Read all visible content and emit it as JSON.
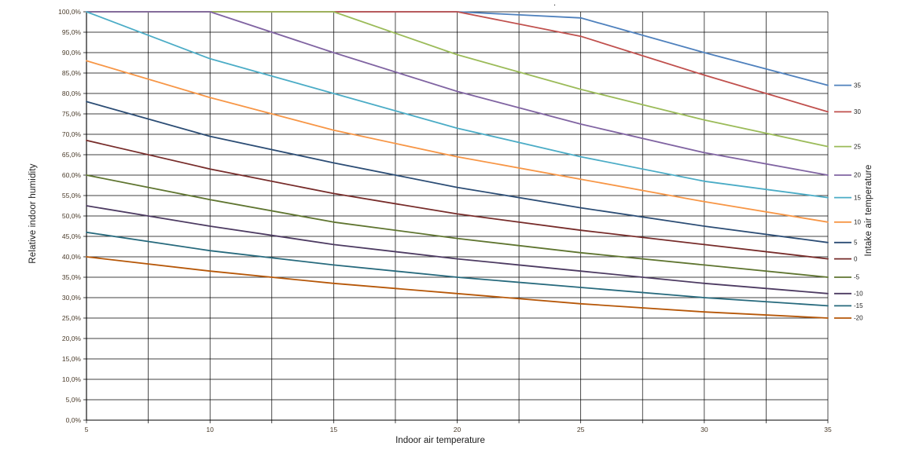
{
  "chart_data": {
    "type": "line",
    "title": ".",
    "xlabel": "Indoor air temperature",
    "ylabel": "Relative indoor humidity",
    "legend_title": "Intake air temperature",
    "legend_position": "right-at-line-ends",
    "grid": true,
    "xlim": [
      5,
      35
    ],
    "ylim": [
      0,
      100
    ],
    "x_minor_step": 2.5,
    "y_tick_step": 5,
    "x_ticks": [
      5,
      10,
      15,
      20,
      25,
      30,
      35
    ],
    "x_tick_labels": [
      "5",
      "10",
      "15",
      "20",
      "25",
      "30",
      "35"
    ],
    "y_tick_labels": [
      "0,0%",
      "5,0%",
      "10,0%",
      "15,0%",
      "20,0%",
      "25,0%",
      "30,0%",
      "35,0%",
      "40,0%",
      "45,0%",
      "50,0%",
      "55,0%",
      "60,0%",
      "65,0%",
      "70,0%",
      "75,0%",
      "80,0%",
      "85,0%",
      "90,0%",
      "95,0%",
      "100,0%"
    ],
    "x": [
      5,
      10,
      15,
      20,
      25,
      30,
      35
    ],
    "series": [
      {
        "name": "35",
        "color": "#4F81BD",
        "values": [
          100,
          100,
          100,
          100,
          98.5,
          90,
          82
        ]
      },
      {
        "name": "30",
        "color": "#C0504D",
        "values": [
          100,
          100,
          100,
          100,
          94,
          84.5,
          75.5
        ]
      },
      {
        "name": "25",
        "color": "#9BBB59",
        "values": [
          100,
          100,
          100,
          89.5,
          81,
          73.5,
          67
        ]
      },
      {
        "name": "20",
        "color": "#8064A2",
        "values": [
          100,
          100,
          90,
          80.5,
          72.5,
          65.5,
          60
        ]
      },
      {
        "name": "15",
        "color": "#4BACC6",
        "values": [
          100,
          88.5,
          80,
          71.5,
          64.5,
          58.5,
          54.5
        ]
      },
      {
        "name": "10",
        "color": "#F79646",
        "values": [
          88,
          79,
          71,
          64.5,
          59,
          53.5,
          48.5
        ]
      },
      {
        "name": "5",
        "color": "#2C4D75",
        "values": [
          78,
          69.5,
          63,
          57,
          52,
          47.5,
          43.5
        ]
      },
      {
        "name": "0",
        "color": "#772C2A",
        "values": [
          68.5,
          61.5,
          55.5,
          50.5,
          46.5,
          43,
          39.5
        ]
      },
      {
        "name": "-5",
        "color": "#5F7530",
        "values": [
          60,
          54,
          48.5,
          44.5,
          41,
          38,
          35
        ]
      },
      {
        "name": "-10",
        "color": "#4D3B62",
        "values": [
          52.5,
          47.5,
          43,
          39.5,
          36.5,
          33.5,
          31
        ]
      },
      {
        "name": "-15",
        "color": "#276A7D",
        "values": [
          46,
          41.5,
          38,
          35,
          32.5,
          30,
          28
        ]
      },
      {
        "name": "-20",
        "color": "#B65708",
        "values": [
          40,
          36.5,
          33.5,
          31,
          28.5,
          26.5,
          25
        ]
      }
    ],
    "colors": {
      "grid": "#000000",
      "axis": "#000000",
      "tick_label": "#4a3b2a",
      "axis_title": "#1a1a1a",
      "background": "#ffffff"
    }
  }
}
